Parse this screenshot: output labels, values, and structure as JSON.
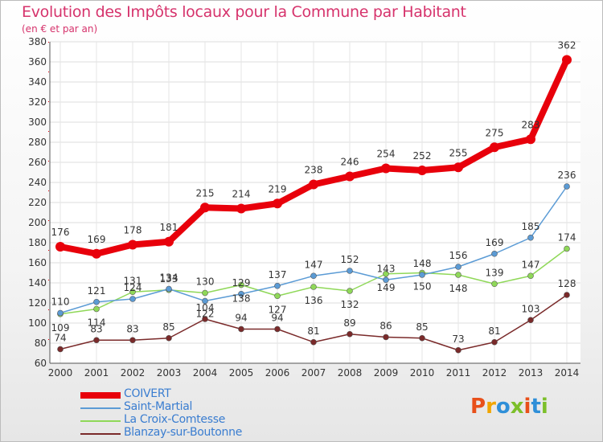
{
  "title": "Evolution des Impôts locaux pour la Commune par Habitant",
  "subtitle": "(en € et par an)",
  "logo": {
    "text": "Proxiti",
    "colors": [
      "#e8501a",
      "#f0a500",
      "#2f8fd8",
      "#7cbf2a",
      "#e8501a",
      "#2f8fd8",
      "#7cbf2a"
    ]
  },
  "chart_data": {
    "type": "line",
    "title": "Evolution des Impôts locaux pour la Commune par Habitant",
    "subtitle": "(en € et par an)",
    "x": [
      2000,
      2001,
      2002,
      2003,
      2004,
      2005,
      2006,
      2007,
      2008,
      2009,
      2010,
      2011,
      2012,
      2013,
      2014
    ],
    "ylim": [
      60,
      380
    ],
    "yticks": [
      60,
      80,
      100,
      120,
      140,
      160,
      180,
      200,
      220,
      240,
      260,
      280,
      300,
      320,
      340,
      360,
      380
    ],
    "grid": true,
    "legend_position": "bottom-left",
    "series": [
      {
        "name": "COIVERT",
        "color": "#e8000b",
        "values": [
          176,
          169,
          178,
          181,
          215,
          214,
          219,
          238,
          246,
          254,
          252,
          255,
          275,
          283,
          362
        ],
        "labels": [
          "176",
          "169",
          "178",
          "181",
          "215",
          "214",
          "219",
          "238",
          "246",
          "254",
          "252",
          "255",
          "275",
          "283",
          "362"
        ]
      },
      {
        "name": "Saint-Martial",
        "color": "#5b9bd5",
        "values": [
          110,
          121,
          124,
          134,
          122,
          129,
          137,
          147,
          152,
          143,
          148,
          156,
          169,
          185,
          236
        ],
        "labels": [
          "110",
          "121",
          "124",
          "134",
          "122",
          "129",
          "137",
          "147",
          "152",
          "143",
          "148",
          "156",
          "169",
          "185",
          "236"
        ]
      },
      {
        "name": "La Croix-Comtesse",
        "color": "#8fd858",
        "values": [
          109,
          114,
          131,
          133,
          130,
          138,
          127,
          136,
          132,
          149,
          150,
          148,
          139,
          147,
          174
        ],
        "labels": [
          "109",
          "114",
          "131",
          "133",
          "130",
          "138",
          "127",
          "136",
          "132",
          "149",
          "150",
          "148",
          "139",
          "147",
          "174"
        ]
      },
      {
        "name": "Blanzay-sur-Boutonne",
        "color": "#7a2a2a",
        "values": [
          74,
          83,
          83,
          85,
          104,
          94,
          94,
          81,
          89,
          86,
          85,
          73,
          81,
          103,
          128
        ],
        "labels": [
          "74",
          "83",
          "83",
          "85",
          "104",
          "94",
          "94",
          "81",
          "89",
          "86",
          "85",
          "73",
          "81",
          "103",
          "128"
        ]
      }
    ]
  }
}
